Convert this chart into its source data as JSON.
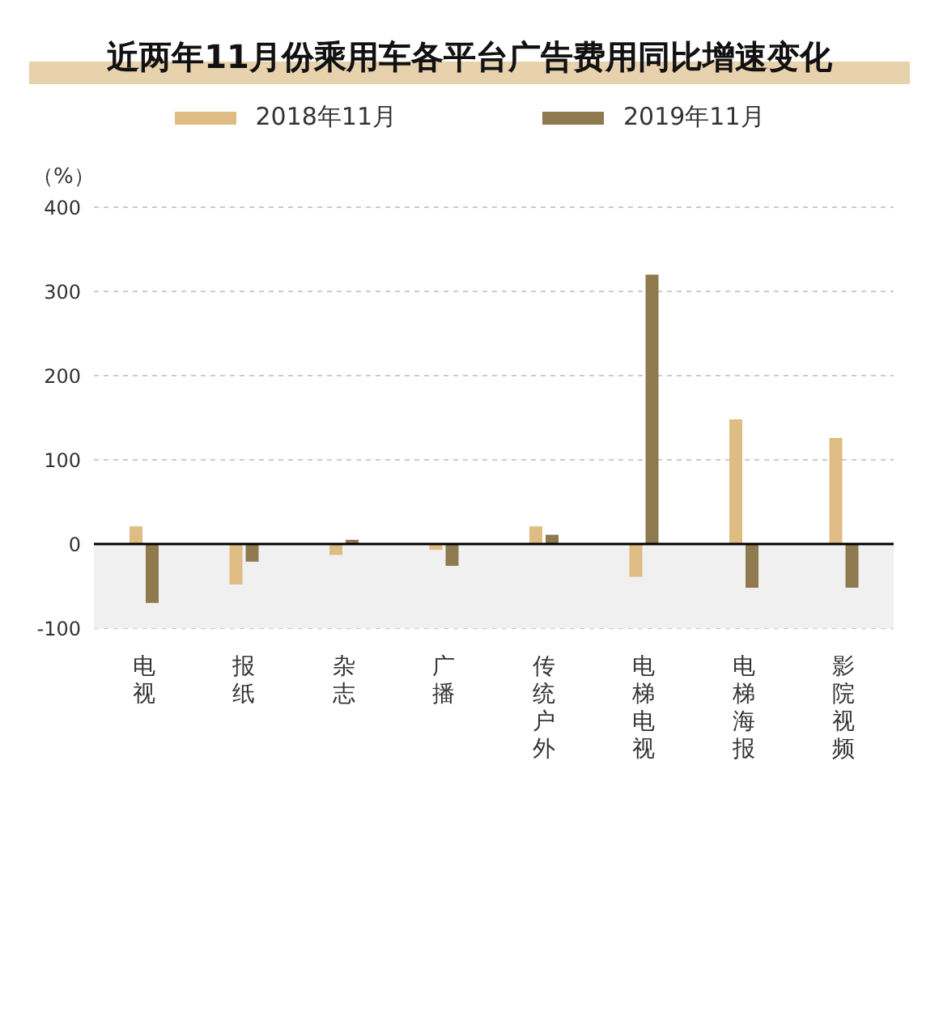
{
  "chart_data": {
    "type": "bar",
    "title": "近两年11月份乘用车各平台广告费用同比增速变化",
    "ylabel": "（%）",
    "categories": [
      "电视",
      "报纸",
      "杂志",
      "广播",
      "传统户外",
      "电梯电视",
      "电梯海报",
      "影院视频"
    ],
    "series": [
      {
        "name": "2018年11月",
        "color": "#e0bc85",
        "values": [
          21,
          -48,
          -13,
          -7,
          21,
          -39,
          148,
          126
        ]
      },
      {
        "name": "2019年11月",
        "color": "#8f7a50",
        "values": [
          -70,
          -21,
          5,
          -26,
          11,
          320,
          -52,
          -52
        ]
      }
    ],
    "ylim": [
      -100,
      400
    ],
    "yticks": [
      -100,
      0,
      100,
      200,
      300,
      400
    ],
    "grid": "y",
    "legend": "top",
    "bands": [
      {
        "axis": "y",
        "from": -100,
        "to": 0,
        "color": "#f0f0f0"
      }
    ]
  }
}
